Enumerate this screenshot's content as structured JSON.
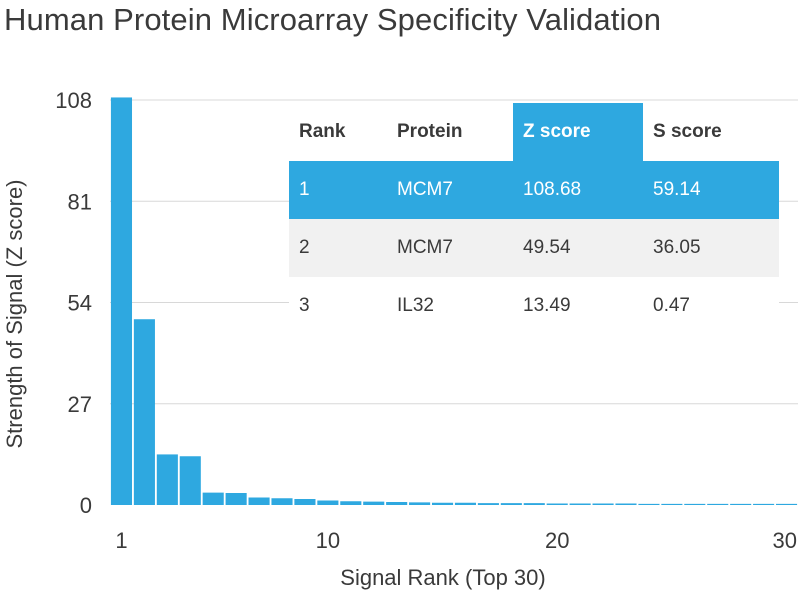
{
  "title": "Human Protein Microarray Specificity Validation",
  "chart_data": {
    "type": "bar",
    "title": "Human Protein Microarray Specificity Validation",
    "xlabel": "Signal Rank (Top 30)",
    "ylabel": "Strength of Signal (Z score)",
    "x": [
      1,
      2,
      3,
      4,
      5,
      6,
      7,
      8,
      9,
      10,
      11,
      12,
      13,
      14,
      15,
      16,
      17,
      18,
      19,
      20,
      21,
      22,
      23,
      24,
      25,
      26,
      27,
      28,
      29,
      30
    ],
    "values": [
      108.68,
      49.54,
      13.49,
      13.0,
      3.3,
      3.2,
      2.0,
      1.8,
      1.6,
      1.2,
      1.0,
      0.9,
      0.8,
      0.7,
      0.6,
      0.6,
      0.5,
      0.5,
      0.5,
      0.4,
      0.4,
      0.4,
      0.4,
      0.3,
      0.3,
      0.3,
      0.3,
      0.3,
      0.3,
      0.3
    ],
    "xticks": [
      1,
      10,
      20,
      30
    ],
    "yticks": [
      0,
      27,
      54,
      81,
      108
    ],
    "ylim": [
      0,
      108
    ],
    "xlim": [
      0.5,
      30.5
    ],
    "grid": "horizontal",
    "color": "#2ea8e0"
  },
  "table": {
    "headers": [
      "Rank",
      "Protein",
      "Z score",
      "S score"
    ],
    "highlight_color": "#2ea8e0",
    "rows": [
      [
        "1",
        "MCM7",
        "108.68",
        "59.14"
      ],
      [
        "2",
        "MCM7",
        "49.54",
        "36.05"
      ],
      [
        "3",
        "IL32",
        "13.49",
        "0.47"
      ]
    ]
  }
}
